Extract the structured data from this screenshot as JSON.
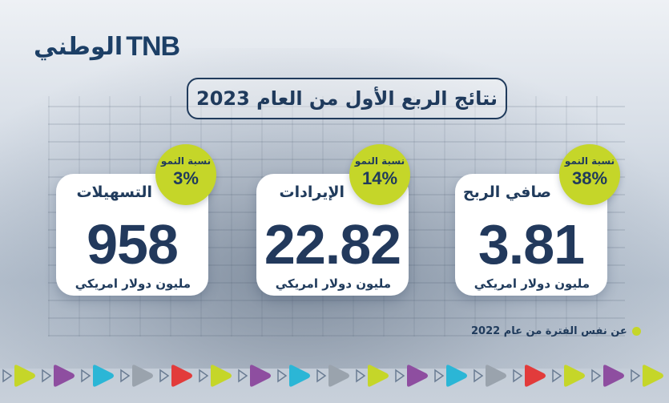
{
  "logo": {
    "arabic": "الوطني",
    "english": "TNB"
  },
  "title": "نتائج الربع الأول من العام 2023",
  "cards": [
    {
      "label": "التسهيلات",
      "value": "958",
      "unit": "مليون دولار امريكي",
      "growth_label": "نسبة النمو",
      "growth_value": "3%"
    },
    {
      "label": "الإيرادات",
      "value": "22.82",
      "unit": "مليون دولار امريكي",
      "growth_label": "نسبة النمو",
      "growth_value": "14%"
    },
    {
      "label": "صافي الربح",
      "value": "3.81",
      "unit": "مليون دولار امريكي",
      "growth_label": "نسبة النمو",
      "growth_value": "38%"
    }
  ],
  "note": "عن نفس الفترة من عام 2022",
  "colors": {
    "navy": "#203b5c",
    "accent_green": "#c5d629",
    "card_bg": "#ffffff"
  },
  "decor_colors": [
    "#c5d629",
    "#8e4ea0",
    "#2bb6d6",
    "#9aa3ad",
    "#e23b3b"
  ]
}
